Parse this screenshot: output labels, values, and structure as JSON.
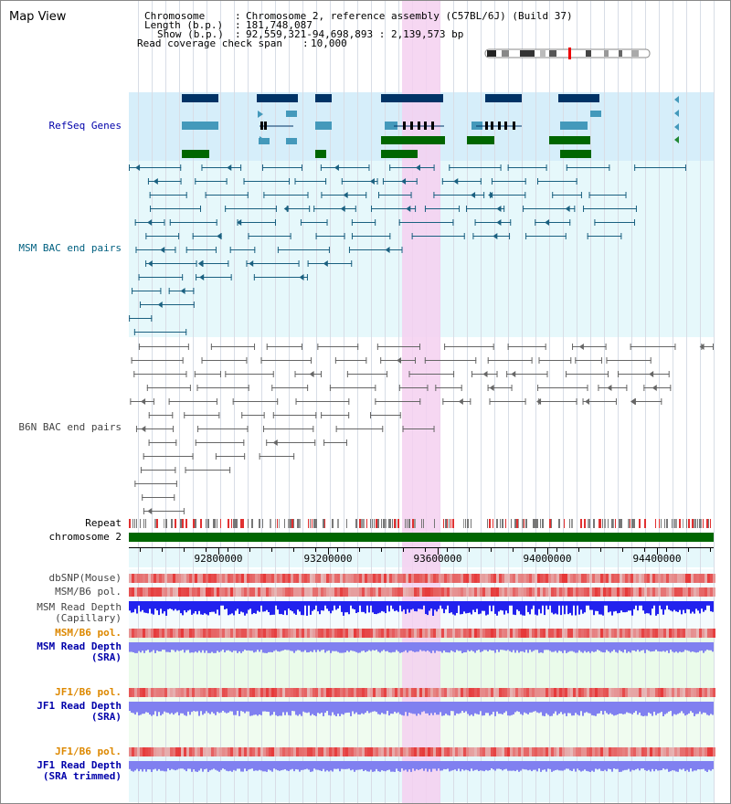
{
  "page_title": "Map View",
  "header": {
    "chromosome_key": "Chromosome",
    "chromosome_val": "Chromosome 2, reference assembly (C57BL/6J) (Build 37)",
    "length_key": "Length (b.p.)",
    "length_val": "181,748,087",
    "show_key": "Show (b.p.)",
    "show_val": "92,559,321-94,698,893 : 2,139,573 bp",
    "coverage_key": "Read coverage check span",
    "coverage_val": "10,000"
  },
  "tracks": {
    "refseq": "RefSeq Genes",
    "msm_bac": "MSM BAC end pairs",
    "b6n_bac": "B6N BAC end pairs",
    "repeat": "Repeat",
    "chromosome": "chromosome 2",
    "dbsnp": "dbSNP(Mouse)",
    "msm_b6_pol_1": "MSM/B6 pol.",
    "msm_depth_cap_1": "MSM Read Depth",
    "msm_depth_cap_2": "(Capillary)",
    "msm_b6_pol_2": "MSM/B6 pol.",
    "msm_depth_sra_1": "MSM Read Depth",
    "msm_depth_sra_2": "(SRA)",
    "jf1_b6_pol_1": "JF1/B6 pol.",
    "jf1_depth_sra_1": "JF1 Read Depth",
    "jf1_depth_sra_2": "(SRA)",
    "jf1_b6_pol_2": "JF1/B6 pol.",
    "jf1_depth_trim_1": "JF1 Read Depth",
    "jf1_depth_trim_2": "(SRA trimmed)"
  },
  "axis": {
    "ticks": [
      "92800000",
      "93200000",
      "93600000",
      "94000000",
      "94400000"
    ]
  },
  "colors": {
    "refseq_band": "#d6eefa",
    "msm_band": "#e6f8fb",
    "b6n_band": "#ffffff",
    "highlight": "#f5d0f0",
    "gene_dark": "#003366",
    "gene_light": "#4499bb",
    "gene_green": "#006600",
    "msm_pair": "#1a6080",
    "b6n_pair": "#666666",
    "pol_red": "#e83030",
    "depth_blue": "#2222ee",
    "depth_lavender": "#8080f0",
    "label_blue": "#0000aa",
    "label_orange": "#dd8800",
    "label_teal": "#006080",
    "label_gray": "#444444"
  }
}
